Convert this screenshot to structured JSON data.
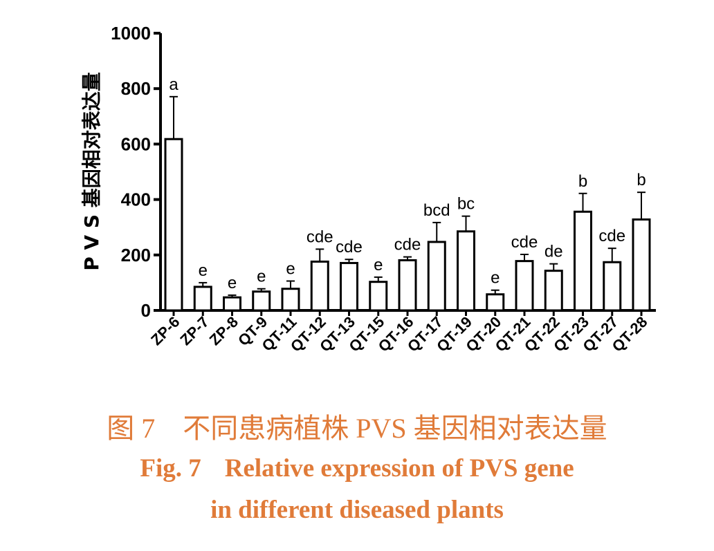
{
  "chart_data": {
    "type": "bar",
    "ylabel": "P V S 基因相对表达量",
    "xlabel": "",
    "ylim": [
      0,
      1000
    ],
    "yticks": [
      0,
      200,
      400,
      600,
      800,
      1000
    ],
    "categories": [
      "ZP-6",
      "ZP-7",
      "ZP-8",
      "QT-9",
      "QT-11",
      "QT-12",
      "QT-13",
      "QT-15",
      "QT-16",
      "QT-17",
      "QT-19",
      "QT-20",
      "QT-21",
      "QT-22",
      "QT-23",
      "QT-27",
      "QT-28"
    ],
    "values": [
      618,
      85,
      47,
      68,
      78,
      176,
      171,
      103,
      181,
      247,
      285,
      58,
      178,
      143,
      356,
      174,
      328
    ],
    "error": [
      153,
      15,
      8,
      10,
      28,
      45,
      13,
      17,
      12,
      70,
      55,
      15,
      24,
      25,
      66,
      50,
      98
    ],
    "significance": [
      "a",
      "e",
      "e",
      "e",
      "e",
      "cde",
      "cde",
      "e",
      "cde",
      "bcd",
      "bc",
      "e",
      "cde",
      "de",
      "b",
      "cde",
      "b"
    ],
    "bar_fill": "#ffffff",
    "bar_stroke": "#000000",
    "grid": false
  },
  "caption": {
    "cn_label": "图 7",
    "cn_text": "不同患病植株 PVS 基因相对表达量",
    "en_label": "Fig. 7",
    "en_line1": "Relative expression of PVS gene",
    "en_line2": "in different diseased plants",
    "color": "#e07b39"
  }
}
